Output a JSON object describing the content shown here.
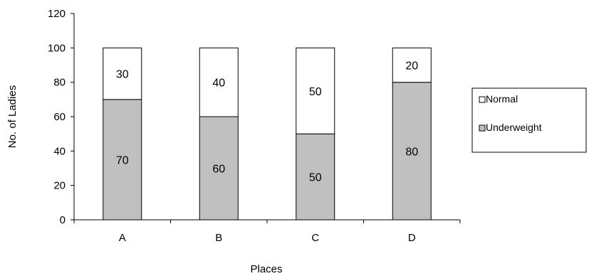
{
  "chart_data": {
    "type": "bar",
    "stacked": true,
    "categories": [
      "A",
      "B",
      "C",
      "D"
    ],
    "series": [
      {
        "name": "Underweight",
        "values": [
          70,
          60,
          50,
          80
        ],
        "color": "#c0c0c0"
      },
      {
        "name": "Normal",
        "values": [
          30,
          40,
          50,
          20
        ],
        "color": "#ffffff"
      }
    ],
    "xlabel": "Places",
    "ylabel": "No. of Ladies",
    "ylim": [
      0,
      120
    ],
    "yticks": [
      0,
      20,
      40,
      60,
      80,
      100,
      120
    ],
    "grid": false,
    "legend_position": "right",
    "legend_order": [
      "Normal",
      "Underweight"
    ]
  }
}
